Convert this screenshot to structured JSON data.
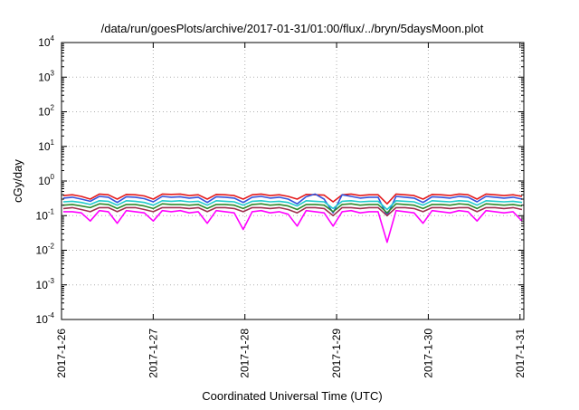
{
  "chart_data": {
    "type": "line",
    "title": "/data/run/goesPlots/archive/2017-01-31/01:00/flux/../bryn/5daysMoon.plot",
    "xlabel": "Coordinated Universal Time (UTC)",
    "ylabel": "cGy/day",
    "yscale": "log",
    "ylim": [
      0.0001,
      10000
    ],
    "y_ticks": [
      {
        "base": "10",
        "exp": "-4",
        "value": 0.0001
      },
      {
        "base": "10",
        "exp": "-3",
        "value": 0.001
      },
      {
        "base": "10",
        "exp": "-2",
        "value": 0.01
      },
      {
        "base": "10",
        "exp": "-1",
        "value": 0.1
      },
      {
        "base": "10",
        "exp": "0",
        "value": 1
      },
      {
        "base": "10",
        "exp": "1",
        "value": 10
      },
      {
        "base": "10",
        "exp": "2",
        "value": 100
      },
      {
        "base": "10",
        "exp": "3",
        "value": 1000
      },
      {
        "base": "10",
        "exp": "4",
        "value": 10000
      }
    ],
    "x_ticks": [
      "2017-1-26",
      "2017-1-27",
      "2017-1-28",
      "2017-1-29",
      "2017-1-30",
      "2017-1-31"
    ],
    "xlim": [
      "2017-01-26T00:00",
      "2017-01-31T01:00"
    ],
    "grid": true,
    "series": [
      {
        "color": "#e41a1c",
        "values": [
          0.38,
          0.4,
          0.36,
          0.3,
          0.42,
          0.4,
          0.3,
          0.41,
          0.4,
          0.37,
          0.3,
          0.42,
          0.41,
          0.42,
          0.38,
          0.4,
          0.3,
          0.41,
          0.4,
          0.38,
          0.3,
          0.4,
          0.42,
          0.38,
          0.4,
          0.36,
          0.3,
          0.41,
          0.4,
          0.39,
          0.25,
          0.4,
          0.42,
          0.38,
          0.4,
          0.4,
          0.22,
          0.42,
          0.4,
          0.38,
          0.3,
          0.41,
          0.4,
          0.38,
          0.42,
          0.4,
          0.3,
          0.42,
          0.4,
          0.38,
          0.4,
          0.36
        ]
      },
      {
        "color": "#3355dd",
        "values": [
          0.32,
          0.34,
          0.3,
          0.26,
          0.36,
          0.34,
          0.24,
          0.35,
          0.34,
          0.31,
          0.25,
          0.36,
          0.34,
          0.35,
          0.32,
          0.34,
          0.24,
          0.35,
          0.34,
          0.32,
          0.24,
          0.34,
          0.36,
          0.32,
          0.34,
          0.3,
          0.22,
          0.35,
          0.42,
          0.3,
          0.12,
          0.4,
          0.36,
          0.32,
          0.34,
          0.34,
          0.1,
          0.36,
          0.34,
          0.32,
          0.24,
          0.35,
          0.34,
          0.32,
          0.36,
          0.34,
          0.25,
          0.36,
          0.34,
          0.32,
          0.34,
          0.3
        ]
      },
      {
        "color": "#22cccc",
        "values": [
          0.25,
          0.26,
          0.24,
          0.21,
          0.27,
          0.26,
          0.2,
          0.27,
          0.26,
          0.24,
          0.2,
          0.27,
          0.26,
          0.27,
          0.25,
          0.26,
          0.2,
          0.27,
          0.26,
          0.25,
          0.2,
          0.26,
          0.27,
          0.25,
          0.26,
          0.24,
          0.19,
          0.27,
          0.26,
          0.25,
          0.16,
          0.26,
          0.27,
          0.25,
          0.26,
          0.26,
          0.15,
          0.27,
          0.26,
          0.25,
          0.2,
          0.27,
          0.26,
          0.25,
          0.27,
          0.26,
          0.2,
          0.27,
          0.26,
          0.25,
          0.26,
          0.24
        ]
      },
      {
        "color": "#2e8b2e",
        "values": [
          0.2,
          0.21,
          0.19,
          0.17,
          0.22,
          0.21,
          0.16,
          0.21,
          0.21,
          0.19,
          0.16,
          0.22,
          0.21,
          0.21,
          0.2,
          0.21,
          0.16,
          0.21,
          0.21,
          0.2,
          0.16,
          0.21,
          0.22,
          0.2,
          0.21,
          0.19,
          0.15,
          0.21,
          0.21,
          0.2,
          0.13,
          0.21,
          0.22,
          0.2,
          0.21,
          0.21,
          0.12,
          0.22,
          0.21,
          0.2,
          0.16,
          0.21,
          0.21,
          0.2,
          0.22,
          0.21,
          0.16,
          0.22,
          0.21,
          0.2,
          0.21,
          0.19
        ]
      },
      {
        "color": "#a03050",
        "values": [
          0.16,
          0.17,
          0.15,
          0.13,
          0.17,
          0.17,
          0.13,
          0.17,
          0.17,
          0.15,
          0.13,
          0.17,
          0.17,
          0.17,
          0.16,
          0.17,
          0.13,
          0.17,
          0.17,
          0.16,
          0.13,
          0.17,
          0.17,
          0.16,
          0.17,
          0.15,
          0.12,
          0.17,
          0.17,
          0.16,
          0.1,
          0.17,
          0.17,
          0.16,
          0.17,
          0.17,
          0.1,
          0.17,
          0.17,
          0.16,
          0.13,
          0.17,
          0.17,
          0.16,
          0.17,
          0.17,
          0.13,
          0.17,
          0.17,
          0.16,
          0.17,
          0.15
        ]
      },
      {
        "color": "#ff00ff",
        "values": [
          0.13,
          0.13,
          0.12,
          0.07,
          0.14,
          0.13,
          0.06,
          0.14,
          0.13,
          0.12,
          0.07,
          0.14,
          0.13,
          0.14,
          0.12,
          0.13,
          0.06,
          0.14,
          0.13,
          0.12,
          0.04,
          0.13,
          0.14,
          0.12,
          0.13,
          0.11,
          0.05,
          0.14,
          0.13,
          0.12,
          0.05,
          0.13,
          0.14,
          0.12,
          0.13,
          0.13,
          0.017,
          0.14,
          0.13,
          0.12,
          0.06,
          0.14,
          0.13,
          0.12,
          0.14,
          0.13,
          0.07,
          0.14,
          0.13,
          0.12,
          0.13,
          0.07
        ]
      }
    ]
  }
}
